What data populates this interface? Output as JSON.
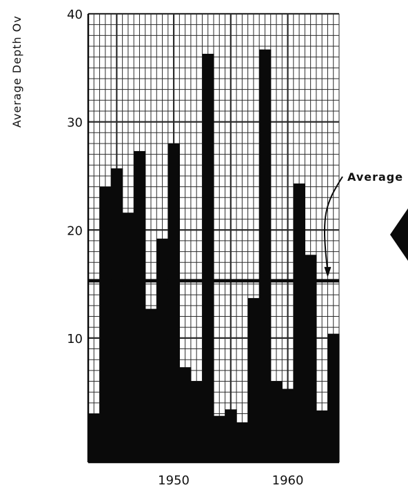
{
  "chart_data": {
    "type": "bar",
    "title": "",
    "xlabel": "",
    "ylabel": "Average Depth Ov",
    "x": [
      1943,
      1944,
      1945,
      1946,
      1947,
      1948,
      1949,
      1950,
      1951,
      1952,
      1953,
      1954,
      1955,
      1956,
      1957,
      1958,
      1959,
      1960,
      1961,
      1962,
      1963,
      1964
    ],
    "values": [
      3,
      24,
      25.7,
      21.6,
      27.3,
      12.7,
      19.2,
      28,
      7.3,
      6,
      36.3,
      2.8,
      3.4,
      2.2,
      13.7,
      36.7,
      6,
      5.3,
      24.3,
      17.7,
      3.3,
      10.4
    ],
    "xlim": [
      1942.5,
      1964.5
    ],
    "ylim": [
      -1.5,
      40
    ],
    "x_ticks": [
      1950,
      1960
    ],
    "y_ticks": [
      10,
      20,
      30,
      40
    ],
    "average_value": 15.3,
    "annotation": "Average",
    "grid": true,
    "bar_color": "#0a0a0a",
    "grid_color": "#2a2a2a"
  }
}
